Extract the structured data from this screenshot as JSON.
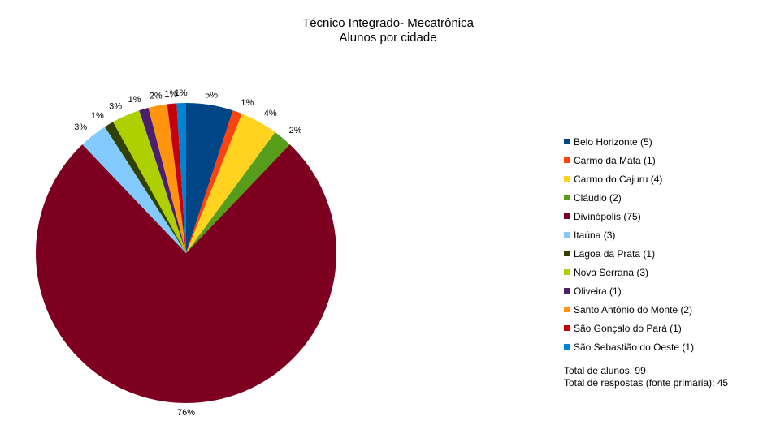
{
  "chart_data": {
    "type": "pie",
    "title": "Técnico Integrado- Mecatrônica",
    "subtitle": "Alunos por cidade",
    "legend_position": "right",
    "slices": [
      {
        "label": "Belo Horizonte (5)",
        "value": 5,
        "percent_label": "5%",
        "color": "#004586"
      },
      {
        "label": "Carmo da Mata (1)",
        "value": 1,
        "percent_label": "1%",
        "color": "#ff420e"
      },
      {
        "label": "Carmo do Cajuru (4)",
        "value": 4,
        "percent_label": "4%",
        "color": "#ffd320"
      },
      {
        "label": "Cláudio (2)",
        "value": 2,
        "percent_label": "2%",
        "color": "#579d1c"
      },
      {
        "label": "Divinópolis (75)",
        "value": 75,
        "percent_label": "76%",
        "color": "#7e0021"
      },
      {
        "label": "Itaúna (3)",
        "value": 3,
        "percent_label": "3%",
        "color": "#83caff"
      },
      {
        "label": "Lagoa da Prata (1)",
        "value": 1,
        "percent_label": "1%",
        "color": "#314004"
      },
      {
        "label": "Nova Serrana (3)",
        "value": 3,
        "percent_label": "3%",
        "color": "#aecf00"
      },
      {
        "label": "Oliveira (1)",
        "value": 1,
        "percent_label": "1%",
        "color": "#4b1f6f"
      },
      {
        "label": "Santo Antônio do Monte (2)",
        "value": 2,
        "percent_label": "2%",
        "color": "#ff950e"
      },
      {
        "label": "São Gonçalo do Pará (1)",
        "value": 1,
        "percent_label": "1%",
        "color": "#c5000b"
      },
      {
        "label": "São Sebastião do Oeste (1)",
        "value": 1,
        "percent_label": "1%",
        "color": "#0084d1"
      }
    ]
  },
  "notes": {
    "total_alunos": "Total de alunos: 99",
    "total_respostas": "Total de respostas (fonte primária): 45"
  }
}
